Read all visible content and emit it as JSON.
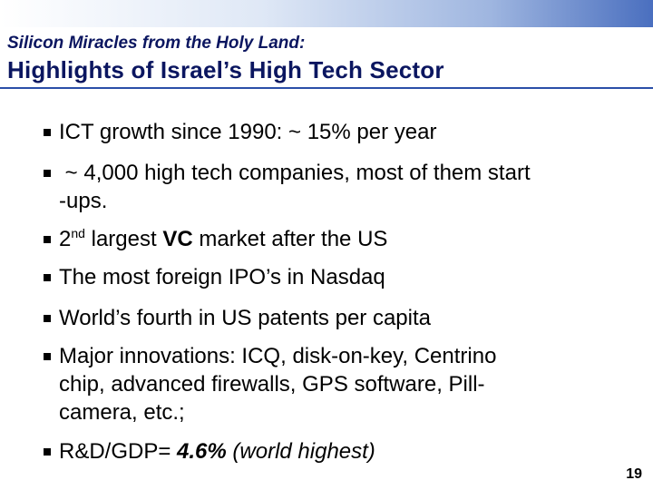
{
  "header": {
    "subtitle": "Silicon Miracles from the Holy Land:",
    "title": "Highlights of Israel’s High Tech Sector"
  },
  "bullets": [
    [
      "ICT growth since 1990: ~ 15% per year"
    ],
    [
      " ~ 4,000 high tech companies, most of them start",
      "-ups."
    ],
    [
      "2",
      "nd",
      " largest ",
      "VC",
      " market after the US"
    ],
    [
      "The most foreign IPO’s in Nasdaq"
    ],
    [
      "World’s fourth in US patents per capita"
    ],
    [
      "Major innovations: ICQ, disk-on-key, Centrino",
      "chip, advanced firewalls, GPS software, Pill-",
      "camera, etc.;"
    ],
    [
      "R&D/GDP= ",
      "4.6%",
      " (world highest)"
    ]
  ],
  "page_number": "19"
}
